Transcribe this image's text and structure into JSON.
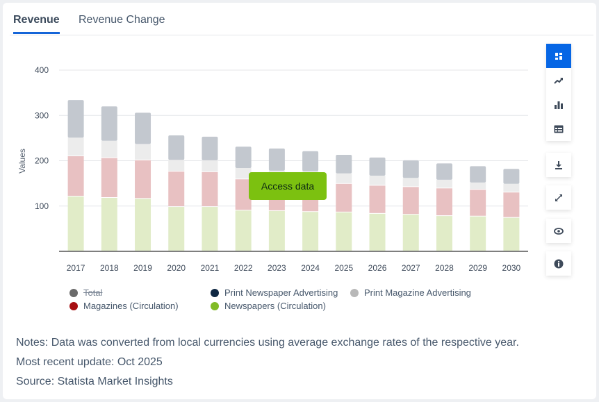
{
  "tabs": [
    {
      "label": "Revenue",
      "active": true
    },
    {
      "label": "Revenue Change",
      "active": false
    }
  ],
  "toolbar": {
    "view_buttons": [
      "dashboard-icon",
      "trend-icon",
      "bar-chart-icon",
      "table-icon"
    ],
    "download_icon": "download-icon",
    "fullscreen_icon": "expand-icon",
    "visibility_icon": "eye-icon",
    "info_icon": "info-icon"
  },
  "access_button": "Access data",
  "legend": [
    {
      "label": "Total",
      "color": "#6b6b6b",
      "hidden": true
    },
    {
      "label": "Print Newspaper Advertising",
      "color": "#0f2742",
      "hidden": false
    },
    {
      "label": "Print Magazine Advertising",
      "color": "#b8b8b8",
      "hidden": false
    },
    {
      "label": "Magazines (Circulation)",
      "color": "#a70f12",
      "hidden": false
    },
    {
      "label": "Newspapers (Circulation)",
      "color": "#81bb26",
      "hidden": false
    }
  ],
  "notes": {
    "note": "Notes: Data was converted from local currencies using average exchange rates of the respective year.",
    "update": "Most recent update: Oct 2025",
    "source": "Source: Statista Market Insights"
  },
  "chart_data": {
    "type": "bar",
    "stacked": true,
    "title": "",
    "xlabel": "",
    "ylabel": "Values",
    "ylim": [
      0,
      400
    ],
    "yticks": [
      100,
      200,
      300,
      400
    ],
    "grid": true,
    "legend_position": "bottom",
    "categories": [
      "2017",
      "2018",
      "2019",
      "2020",
      "2021",
      "2022",
      "2023",
      "2024",
      "2025",
      "2026",
      "2027",
      "2028",
      "2029",
      "2030"
    ],
    "series": [
      {
        "name": "Newspapers (Circulation)",
        "fill": "#e1ecc8",
        "values": [
          121,
          118,
          116,
          98,
          98,
          90,
          89,
          87,
          86,
          83,
          81,
          78,
          77,
          74
        ]
      },
      {
        "name": "Magazines (Circulation)",
        "fill": "#e8c1c2",
        "values": [
          89,
          88,
          85,
          78,
          77,
          69,
          66,
          66,
          63,
          62,
          61,
          61,
          59,
          56
        ]
      },
      {
        "name": "Print Magazine Advertising",
        "fill": "#ececec",
        "values": [
          41,
          38,
          36,
          26,
          26,
          25,
          23,
          24,
          23,
          22,
          20,
          19,
          16,
          19
        ]
      },
      {
        "name": "Print Newspaper Advertising",
        "fill": "#c3c8cf",
        "values": [
          83,
          76,
          69,
          54,
          52,
          47,
          49,
          44,
          41,
          40,
          39,
          36,
          36,
          33
        ]
      }
    ]
  }
}
